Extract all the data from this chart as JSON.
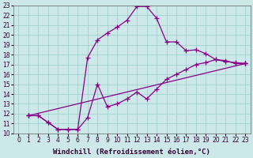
{
  "bg_color": "#cce8e8",
  "grid_color": "#99cccc",
  "line_color": "#880088",
  "marker": "+",
  "markersize": 4,
  "linewidth": 0.9,
  "xlabel": "Windchill (Refroidissement éolien,°C)",
  "xlabel_fontsize": 6.5,
  "tick_fontsize": 5.5,
  "xlim": [
    -0.5,
    23.5
  ],
  "ylim": [
    10,
    23
  ],
  "yticks": [
    10,
    11,
    12,
    13,
    14,
    15,
    16,
    17,
    18,
    19,
    20,
    21,
    22,
    23
  ],
  "xticks": [
    0,
    1,
    2,
    3,
    4,
    5,
    6,
    7,
    8,
    9,
    10,
    11,
    12,
    13,
    14,
    15,
    16,
    17,
    18,
    19,
    20,
    21,
    22,
    23
  ],
  "series": [
    {
      "x": [
        1,
        2,
        3,
        4,
        5,
        6,
        7,
        8,
        9,
        10,
        11,
        12,
        13,
        14,
        15,
        16,
        17,
        18,
        19,
        20,
        21,
        22,
        23
      ],
      "y": [
        11.8,
        11.8,
        11.1,
        10.4,
        10.4,
        10.4,
        17.7,
        19.5,
        20.2,
        20.8,
        21.5,
        22.9,
        22.9,
        21.7,
        19.3,
        19.3,
        18.4,
        18.5,
        18.1,
        17.5,
        17.4,
        17.1,
        17.1
      ]
    },
    {
      "x": [
        1,
        2,
        3,
        4,
        5,
        6,
        7,
        8,
        9,
        10,
        11,
        12,
        13,
        14,
        15,
        16,
        17,
        18,
        19,
        20,
        21,
        22,
        23
      ],
      "y": [
        11.8,
        11.8,
        11.1,
        10.4,
        10.4,
        10.4,
        11.6,
        15.0,
        12.7,
        13.0,
        13.5,
        14.2,
        13.5,
        14.5,
        15.5,
        16.0,
        16.5,
        17.0,
        17.2,
        17.5,
        17.3,
        17.2,
        17.1
      ]
    },
    {
      "x": [
        1,
        23
      ],
      "y": [
        11.8,
        17.1
      ]
    }
  ]
}
